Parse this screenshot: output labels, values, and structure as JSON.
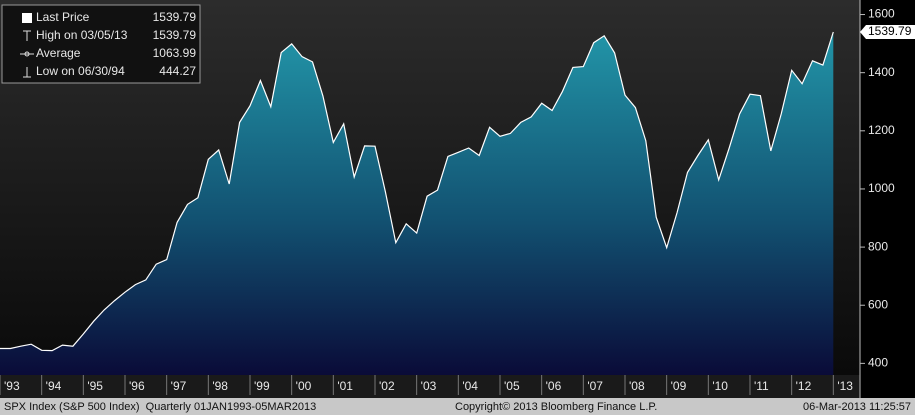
{
  "chart_data": {
    "type": "area",
    "categories": [
      "'93",
      null,
      null,
      null,
      "'94",
      null,
      null,
      null,
      "'95",
      null,
      null,
      null,
      "'96",
      null,
      null,
      null,
      "'97",
      null,
      null,
      null,
      "'98",
      null,
      null,
      null,
      "'99",
      null,
      null,
      null,
      "'00",
      null,
      null,
      null,
      "'01",
      null,
      null,
      null,
      "'02",
      null,
      null,
      null,
      "'03",
      null,
      null,
      null,
      "'04",
      null,
      null,
      null,
      "'05",
      null,
      null,
      null,
      "'06",
      null,
      null,
      null,
      "'07",
      null,
      null,
      null,
      "'08",
      null,
      null,
      null,
      "'09",
      null,
      null,
      null,
      "'10",
      null,
      null,
      null,
      "'11",
      null,
      null,
      null,
      "'12",
      null,
      null,
      null,
      "'13"
    ],
    "series": [
      {
        "name": "Last Price",
        "color": "#ffffff",
        "values": [
          451,
          451,
          459,
          466,
          445,
          444,
          463,
          459,
          501,
          545,
          584,
          616,
          645,
          671,
          687,
          741,
          757,
          885,
          947,
          970,
          1102,
          1134,
          1017,
          1229,
          1286,
          1373,
          1283,
          1469,
          1499,
          1455,
          1437,
          1320,
          1160,
          1224,
          1041,
          1148,
          1147,
          990,
          815,
          880,
          848,
          975,
          996,
          1112,
          1126,
          1141,
          1115,
          1212,
          1181,
          1191,
          1229,
          1248,
          1295,
          1270,
          1336,
          1418,
          1421,
          1503,
          1527,
          1468,
          1323,
          1280,
          1166,
          903,
          798,
          919,
          1057,
          1115,
          1169,
          1031,
          1141,
          1258,
          1326,
          1321,
          1131,
          1258,
          1408,
          1362,
          1441,
          1426,
          1539.79
        ]
      }
    ],
    "ylim": [
      360,
      1650
    ],
    "yticks": [
      400,
      600,
      800,
      1000,
      1200,
      1400,
      1600
    ],
    "legend_stats": [
      {
        "label": "Last Price",
        "value": 1539.79
      },
      {
        "label": "High on 03/05/13",
        "value": 1539.79
      },
      {
        "label": "Average",
        "value": 1063.99
      },
      {
        "label": "Low on 06/30/94",
        "value": 444.27
      }
    ],
    "footer": {
      "left": "SPX Index (S&P 500 Index)  Quarterly 01JAN1993-05MAR2013",
      "center": "Copyright© 2013 Bloomberg Finance L.P.",
      "right": "06-Mar-2013 11:25:57"
    }
  }
}
